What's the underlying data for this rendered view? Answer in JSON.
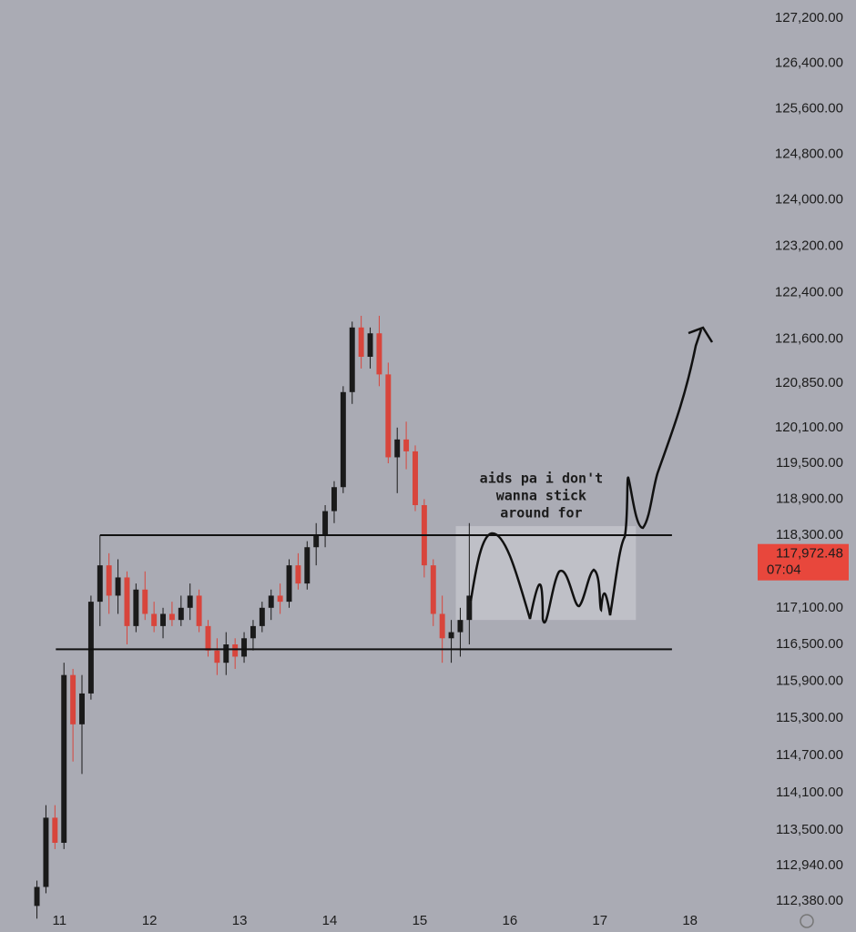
{
  "chart_data": {
    "type": "candlestick",
    "up_color": "#1a1a1a",
    "down_color": "#d8453c",
    "background": "#aaabb4",
    "log_scale": true,
    "x": [
      10.75,
      10.85,
      10.95,
      11.05,
      11.15,
      11.25,
      11.35,
      11.45,
      11.55,
      11.65,
      11.75,
      11.85,
      11.95,
      12.05,
      12.15,
      12.25,
      12.35,
      12.45,
      12.55,
      12.65,
      12.75,
      12.85,
      12.95,
      13.05,
      13.15,
      13.25,
      13.35,
      13.45,
      13.55,
      13.65,
      13.75,
      13.85,
      13.95,
      14.05,
      14.15,
      14.25,
      14.35,
      14.45,
      14.55,
      14.65,
      14.75,
      14.85,
      14.95,
      15.05,
      15.15,
      15.25,
      15.35,
      15.45,
      15.55
    ],
    "open": [
      112300,
      112600,
      113700,
      113300,
      116000,
      115200,
      115700,
      117200,
      117800,
      117300,
      117600,
      116800,
      117400,
      117000,
      116800,
      117000,
      116900,
      117100,
      117300,
      116800,
      116400,
      116200,
      116500,
      116300,
      116600,
      116800,
      117100,
      117300,
      117200,
      117800,
      117500,
      118100,
      118300,
      118700,
      119100,
      120700,
      121800,
      121300,
      121700,
      121000,
      119600,
      119900,
      119700,
      118800,
      117800,
      117000,
      116600,
      116700,
      116900
    ],
    "high": [
      112700,
      113900,
      113900,
      116200,
      116100,
      116000,
      117300,
      118300,
      118000,
      117900,
      117700,
      117500,
      117700,
      117200,
      117100,
      117200,
      117300,
      117500,
      117400,
      116900,
      116600,
      116700,
      116600,
      116700,
      116900,
      117200,
      117400,
      117500,
      117900,
      118000,
      118200,
      118500,
      118800,
      119200,
      120800,
      121900,
      122000,
      121800,
      122000,
      121200,
      120100,
      120200,
      119800,
      118900,
      117900,
      117300,
      116900,
      117100,
      118500
    ],
    "low": [
      112100,
      112500,
      113200,
      113200,
      114600,
      114400,
      115600,
      116800,
      117000,
      117000,
      116500,
      116700,
      116900,
      116700,
      116600,
      116800,
      116800,
      116900,
      116700,
      116300,
      116000,
      116000,
      116100,
      116200,
      116400,
      116700,
      116900,
      117000,
      117100,
      117400,
      117400,
      117800,
      118100,
      118500,
      119000,
      120500,
      121100,
      121100,
      120800,
      119500,
      119000,
      119400,
      118700,
      117600,
      116800,
      116200,
      116200,
      116300,
      116500
    ],
    "close": [
      112600,
      113700,
      113300,
      116000,
      115200,
      115700,
      117200,
      117800,
      117300,
      117600,
      116800,
      117400,
      117000,
      116800,
      117000,
      116900,
      117100,
      117300,
      116800,
      116400,
      116200,
      116500,
      116300,
      116600,
      116800,
      117100,
      117300,
      117200,
      117800,
      117500,
      118100,
      118300,
      118700,
      119100,
      120700,
      121800,
      121300,
      121700,
      121000,
      119600,
      119900,
      119700,
      118800,
      117800,
      117000,
      116600,
      116700,
      116900,
      117300
    ],
    "xlim": [
      10.34,
      18.63
    ],
    "xticks": [
      11,
      12,
      13,
      14,
      15,
      16,
      17,
      18
    ],
    "ylim": [
      111890,
      127530
    ],
    "yticks": [
      {
        "value": 127200,
        "label": "127,200.00"
      },
      {
        "value": 126400,
        "label": "126,400.00"
      },
      {
        "value": 125600,
        "label": "125,600.00"
      },
      {
        "value": 124800,
        "label": "124,800.00"
      },
      {
        "value": 124000,
        "label": "124,000.00"
      },
      {
        "value": 123200,
        "label": "123,200.00"
      },
      {
        "value": 122400,
        "label": "122,400.00"
      },
      {
        "value": 121600,
        "label": "121,600.00"
      },
      {
        "value": 120850,
        "label": "120,850.00"
      },
      {
        "value": 120100,
        "label": "120,100.00"
      },
      {
        "value": 119500,
        "label": "119,500.00"
      },
      {
        "value": 118900,
        "label": "118,900.00"
      },
      {
        "value": 118300,
        "label": "118,300.00"
      },
      {
        "value": 117100,
        "label": "117,100.00"
      },
      {
        "value": 116500,
        "label": "116,500.00"
      },
      {
        "value": 115900,
        "label": "115,900.00"
      },
      {
        "value": 115300,
        "label": "115,300.00"
      },
      {
        "value": 114700,
        "label": "114,700.00"
      },
      {
        "value": 114100,
        "label": "114,100.00"
      },
      {
        "value": 113500,
        "label": "113,500.00"
      },
      {
        "value": 112940,
        "label": "112,940.00"
      },
      {
        "value": 112380,
        "label": "112,380.00"
      }
    ],
    "levels": [
      {
        "value": 118300,
        "from": 11.45,
        "to": 17.8
      },
      {
        "value": 116420,
        "from": 10.96,
        "to": 17.8
      }
    ],
    "zone": {
      "x": [
        15.4,
        17.4
      ],
      "y": [
        116900,
        118450
      ]
    },
    "last_price": {
      "value": 117972.48,
      "label": "117,972.48",
      "countdown": "07:04",
      "color": "#e8473c"
    },
    "annotation": [
      "aids pa i don't",
      "wanna stick",
      "around for"
    ]
  }
}
